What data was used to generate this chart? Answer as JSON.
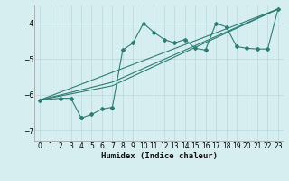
{
  "xlabel": "Humidex (Indice chaleur)",
  "bg_color": "#d6eef0",
  "grid_color": "#b8d8dc",
  "line_color": "#2e7d74",
  "xlim": [
    -0.5,
    23.5
  ],
  "ylim": [
    -7.3,
    -3.5
  ],
  "yticks": [
    -7,
    -6,
    -5,
    -4
  ],
  "xticks": [
    0,
    1,
    2,
    3,
    4,
    5,
    6,
    7,
    8,
    9,
    10,
    11,
    12,
    13,
    14,
    15,
    16,
    17,
    18,
    19,
    20,
    21,
    22,
    23
  ],
  "series1_x": [
    0,
    2,
    3,
    4,
    4,
    5,
    6,
    7,
    8,
    9,
    10,
    11,
    12,
    13,
    14,
    15,
    16,
    17,
    18,
    19,
    20,
    21,
    22,
    23
  ],
  "series1_y": [
    -6.15,
    -6.1,
    -6.1,
    -6.65,
    -6.65,
    -6.55,
    -6.4,
    -6.35,
    -4.75,
    -4.55,
    -4.0,
    -4.25,
    -4.45,
    -4.55,
    -4.45,
    -4.7,
    -4.75,
    -4.0,
    -4.1,
    -4.65,
    -4.7,
    -4.72,
    -4.72,
    -3.6
  ],
  "series2_x": [
    0,
    23
  ],
  "series2_y": [
    -6.15,
    -3.6
  ],
  "series3_x": [
    0,
    7,
    23
  ],
  "series3_y": [
    -6.15,
    -5.65,
    -3.6
  ],
  "series4_x": [
    0,
    7,
    23
  ],
  "series4_y": [
    -6.15,
    -5.75,
    -3.6
  ]
}
